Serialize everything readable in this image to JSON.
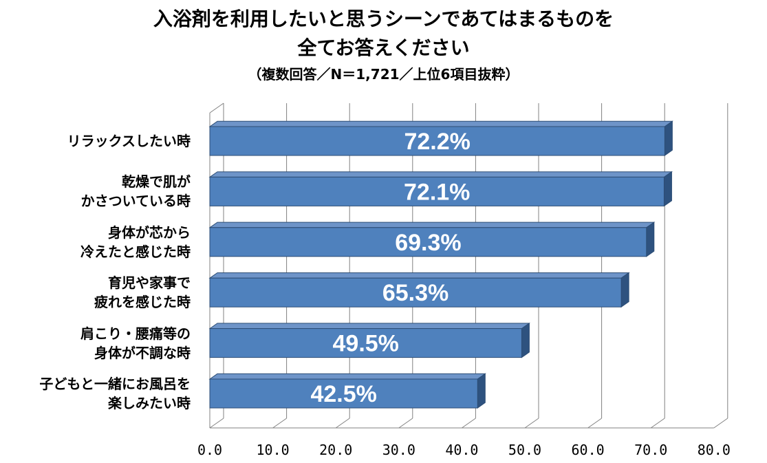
{
  "title": {
    "line1": "入浴剤を利用したいと思うシーンであてはまるものを",
    "line2": "全てお答えください",
    "line3": "（複数回答／N＝1,721／上位6項目抜粋）"
  },
  "chart_data": {
    "type": "bar",
    "orientation": "horizontal",
    "style": "3d",
    "categories": [
      [
        "リラックスしたい時"
      ],
      [
        "乾燥で肌が",
        "かさついている時"
      ],
      [
        "身体が芯から",
        "冷えたと感じた時"
      ],
      [
        "育児や家事で",
        "疲れを感じた時"
      ],
      [
        "肩こり・腰痛等の",
        "身体が不調な時"
      ],
      [
        "子どもと一緒にお風呂を",
        "楽しみたい時"
      ]
    ],
    "values": [
      72.2,
      72.1,
      69.3,
      65.3,
      49.5,
      42.5
    ],
    "value_labels": [
      "72.2%",
      "72.1%",
      "69.3%",
      "65.3%",
      "49.5%",
      "42.5%"
    ],
    "x_ticks": [
      "0.0",
      "10.0",
      "20.0",
      "30.0",
      "40.0",
      "50.0",
      "60.0",
      "70.0",
      "80.0"
    ],
    "xlim": [
      0,
      80
    ],
    "grid": true,
    "legend": "none",
    "colors": {
      "bar_front": "#4F81BD",
      "bar_top": "#6E94C8",
      "bar_side": "#2E527F",
      "bar_edge": "#2C4D75",
      "grid": "#808080",
      "label_text": "#ffffff"
    }
  }
}
